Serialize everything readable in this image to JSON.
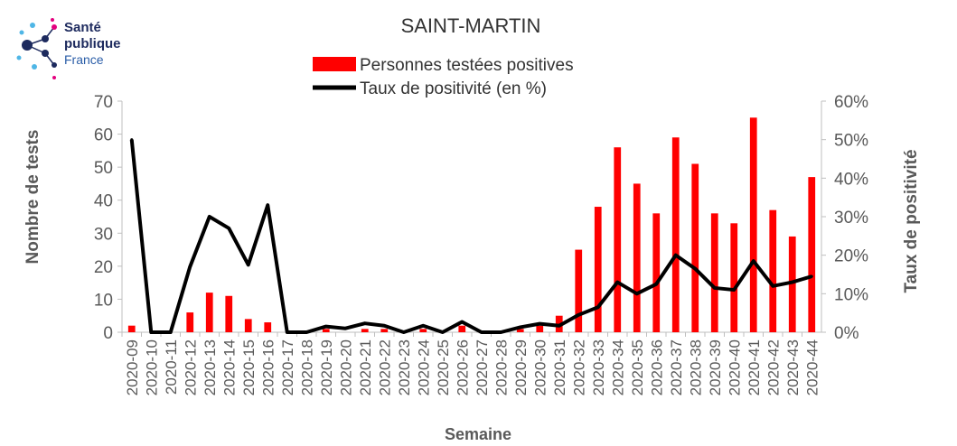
{
  "logo": {
    "line1": "Santé",
    "line2": "publique",
    "line3": "France"
  },
  "chart_data": {
    "type": "bar",
    "title": "SAINT-MARTIN",
    "xlabel": "Semaine",
    "ylabel": "Nombre de tests",
    "y2label": "Taux de positivité",
    "ylim": [
      0,
      70
    ],
    "y2lim": [
      0,
      60
    ],
    "yticks": [
      "0",
      "10",
      "20",
      "30",
      "40",
      "50",
      "60",
      "70"
    ],
    "y2ticks": [
      "0%",
      "10%",
      "20%",
      "30%",
      "40%",
      "50%",
      "60%"
    ],
    "categories": [
      "2020-09",
      "2020-10",
      "2020-11",
      "2020-12",
      "2020-13",
      "2020-14",
      "2020-15",
      "2020-16",
      "2020-17",
      "2020-18",
      "2020-19",
      "2020-20",
      "2020-21",
      "2020-22",
      "2020-23",
      "2020-24",
      "2020-25",
      "2020-26",
      "2020-27",
      "2020-28",
      "2020-29",
      "2020-30",
      "2020-31",
      "2020-32",
      "2020-33",
      "2020-34",
      "2020-35",
      "2020-36",
      "2020-37",
      "2020-38",
      "2020-39",
      "2020-40",
      "2020-41",
      "2020-42",
      "2020-43",
      "2020-44"
    ],
    "series": [
      {
        "name": "Personnes testées positives",
        "kind": "bar",
        "axis": "left",
        "color": "#ff0000",
        "values": [
          2,
          0,
          0,
          6,
          12,
          11,
          4,
          3,
          0,
          0,
          1,
          0,
          1,
          1,
          0,
          1,
          0,
          2,
          0,
          0,
          1,
          2,
          5,
          25,
          38,
          56,
          45,
          36,
          59,
          51,
          36,
          33,
          65,
          37,
          29,
          47
        ]
      },
      {
        "name": "Taux de positivité (en %)",
        "kind": "line",
        "axis": "right",
        "color": "#000000",
        "values": [
          50,
          0,
          0,
          17,
          30,
          27,
          17.5,
          33,
          0,
          0,
          1.5,
          1,
          2.3,
          1.7,
          0,
          1.7,
          0,
          2.7,
          0,
          0,
          1.3,
          2.2,
          1.7,
          4.5,
          6.5,
          13,
          10,
          12.5,
          20,
          16.5,
          11.5,
          11,
          18.5,
          12,
          13,
          14.5
        ]
      }
    ],
    "legend_position": "top-center",
    "grid": false
  }
}
